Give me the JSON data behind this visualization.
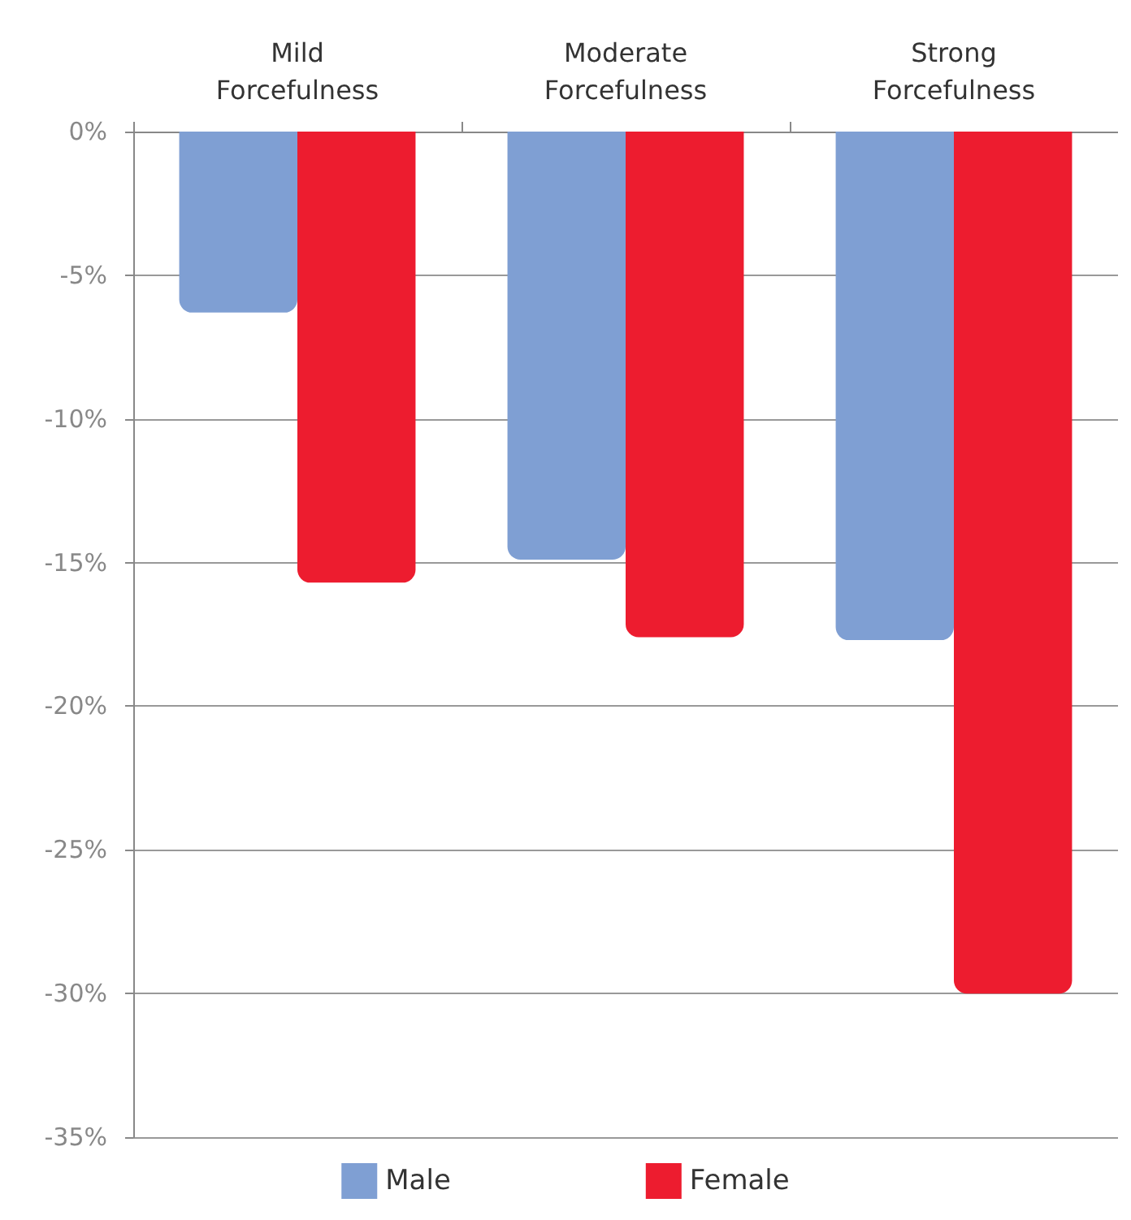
{
  "chart_data": {
    "type": "bar",
    "categories": [
      "Mild\nForcefulness",
      "Moderate\nForcefulness",
      "Strong\nForcefulness"
    ],
    "series": [
      {
        "name": "Male",
        "color": "#7f9fd3",
        "values": [
          -6.3,
          -14.9,
          -17.7
        ]
      },
      {
        "name": "Female",
        "color": "#ed1c2f",
        "values": [
          -15.7,
          -17.6,
          -30.0
        ]
      }
    ],
    "ylim": [
      -35,
      0
    ],
    "yticks": [
      {
        "value": 0,
        "label": "0%"
      },
      {
        "value": -5,
        "label": "-5%"
      },
      {
        "value": -10,
        "label": "-10%"
      },
      {
        "value": -15,
        "label": "-15%"
      },
      {
        "value": -20,
        "label": "-20%"
      },
      {
        "value": -25,
        "label": "-25%"
      },
      {
        "value": -30,
        "label": "-30%"
      },
      {
        "value": -35,
        "label": "-35%"
      }
    ],
    "grid": "y",
    "legend": "bottom"
  }
}
